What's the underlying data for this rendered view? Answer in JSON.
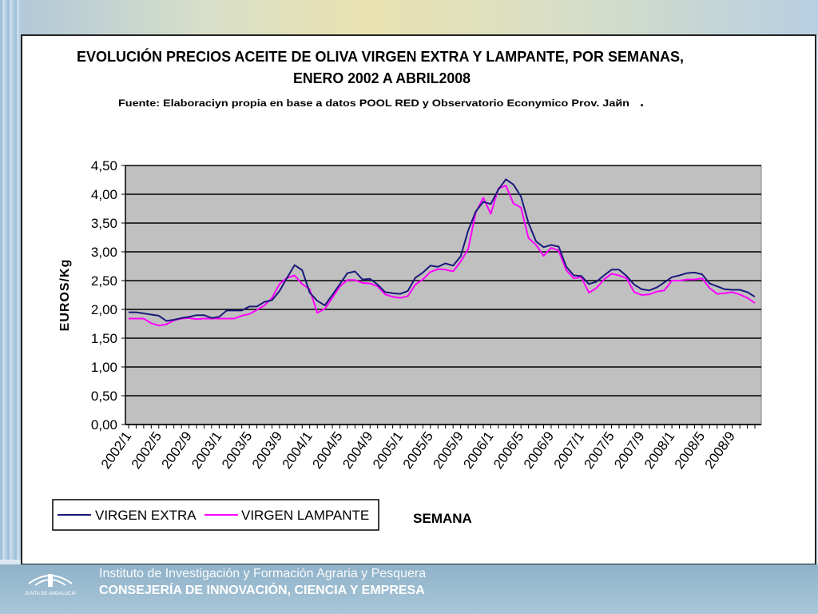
{
  "slide": {
    "title_line1": "EVOLUCIÓN PRECIOS ACEITE DE OLIVA VIRGEN EXTRA Y LAMPANTE, POR SEMANAS,",
    "title_line2": "ENERO 2002 A ABRIL2008",
    "source": "Fuente: Elaboraciyn propia en base a datos POOL RED y Observatorio Econymico Prov. Jaйn",
    "source_dot": "."
  },
  "footer": {
    "logo_text": "JUNTA DE ANDALUCIA",
    "line1": "Instituto de Investigación y Formación Agraria y Pesquera",
    "line2": "CONSEJERÍA DE INNOVACIÓN, CIENCIA Y EMPRESA"
  },
  "colors": {
    "virgen_extra": "#1a1a7a",
    "virgen_lampante": "#ff00ff",
    "plot_bg": "#c0c0c0",
    "grid": "#000000"
  },
  "chart_data": {
    "type": "line",
    "ylabel": "EUROS/Kg",
    "xlabel": "SEMANA",
    "ylim": [
      0,
      4.5
    ],
    "yticks": [
      "0,00",
      "0,50",
      "1,00",
      "1,50",
      "2,00",
      "2,50",
      "3,00",
      "3,50",
      "4,00",
      "4,50"
    ],
    "xtick_labels": [
      "2002/1",
      "2002/5",
      "2002/9",
      "2003/1",
      "2003/5",
      "2003/9",
      "2004/1",
      "2004/5",
      "2004/9",
      "2005/1",
      "2005/5",
      "2005/9",
      "2006/1",
      "2006/5",
      "2006/9",
      "2007/1",
      "2007/5",
      "2007/9",
      "2008/1",
      "2008/5",
      "2008/9"
    ],
    "grid": true,
    "legend_position": "bottom-left",
    "series": [
      {
        "name": "VIRGEN EXTRA",
        "values": [
          1.95,
          1.95,
          1.93,
          1.91,
          1.89,
          1.8,
          1.82,
          1.85,
          1.87,
          1.9,
          1.9,
          1.85,
          1.87,
          1.98,
          1.98,
          1.98,
          2.05,
          2.05,
          2.13,
          2.16,
          2.32,
          2.55,
          2.77,
          2.68,
          2.29,
          2.15,
          2.07,
          2.25,
          2.44,
          2.63,
          2.66,
          2.52,
          2.53,
          2.43,
          2.3,
          2.28,
          2.27,
          2.32,
          2.55,
          2.64,
          2.76,
          2.74,
          2.8,
          2.76,
          2.92,
          3.37,
          3.7,
          3.87,
          3.83,
          4.08,
          4.26,
          4.17,
          3.96,
          3.5,
          3.18,
          3.08,
          3.12,
          3.09,
          2.74,
          2.59,
          2.58,
          2.44,
          2.48,
          2.59,
          2.69,
          2.69,
          2.58,
          2.43,
          2.35,
          2.33,
          2.38,
          2.47,
          2.56,
          2.59,
          2.63,
          2.64,
          2.61,
          2.45,
          2.4,
          2.35,
          2.34,
          2.34,
          2.3,
          2.22
        ]
      },
      {
        "name": "VIRGEN LAMPANTE",
        "values": [
          1.84,
          1.84,
          1.84,
          1.76,
          1.72,
          1.74,
          1.81,
          1.84,
          1.85,
          1.83,
          1.84,
          1.84,
          1.84,
          1.84,
          1.84,
          1.89,
          1.92,
          1.99,
          2.07,
          2.2,
          2.44,
          2.55,
          2.59,
          2.44,
          2.35,
          1.94,
          2.01,
          2.2,
          2.4,
          2.51,
          2.51,
          2.46,
          2.45,
          2.4,
          2.26,
          2.22,
          2.2,
          2.23,
          2.43,
          2.52,
          2.65,
          2.7,
          2.69,
          2.66,
          2.83,
          3.05,
          3.68,
          3.94,
          3.66,
          4.1,
          4.15,
          3.84,
          3.77,
          3.24,
          3.12,
          2.93,
          3.07,
          3.02,
          2.68,
          2.54,
          2.56,
          2.29,
          2.37,
          2.52,
          2.62,
          2.59,
          2.54,
          2.3,
          2.25,
          2.26,
          2.31,
          2.33,
          2.5,
          2.5,
          2.52,
          2.52,
          2.54,
          2.37,
          2.27,
          2.28,
          2.3,
          2.26,
          2.2,
          2.11
        ]
      }
    ]
  }
}
